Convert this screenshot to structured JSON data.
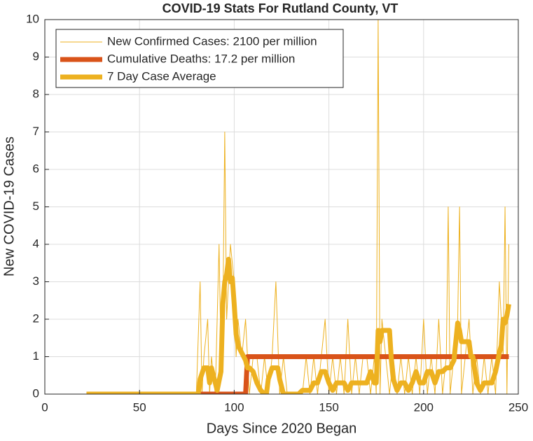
{
  "chart_data": {
    "type": "line",
    "title": "COVID-19 Stats For Rutland County, VT",
    "x_label": "Days Since 2020 Began",
    "y_label": "New COVID-19 Cases",
    "xlim": [
      0,
      250
    ],
    "xticks": [
      0,
      50,
      100,
      150,
      200,
      250
    ],
    "ylim": [
      0,
      10
    ],
    "yticks": [
      0,
      1,
      2,
      3,
      4,
      5,
      6,
      7,
      8,
      9,
      10
    ],
    "grid": true,
    "legend": "top-left",
    "series": [
      {
        "name": "New Confirmed Cases: 2100 per million",
        "color": "#edb120",
        "x": [
          22,
          80,
          82,
          83,
          84,
          86,
          87,
          88,
          90,
          92,
          93,
          94,
          95,
          96,
          97,
          98,
          100,
          101,
          102,
          104,
          106,
          108,
          110,
          112,
          114,
          116,
          118,
          120,
          122,
          124,
          126,
          128,
          130,
          132,
          134,
          136,
          138,
          140,
          142,
          144,
          146,
          148,
          150,
          152,
          154,
          156,
          158,
          160,
          162,
          164,
          166,
          168,
          170,
          172,
          174,
          175,
          176,
          177,
          178,
          180,
          182,
          184,
          186,
          188,
          190,
          192,
          194,
          196,
          198,
          200,
          202,
          204,
          206,
          208,
          210,
          212,
          213,
          214,
          216,
          218,
          219,
          220,
          222,
          224,
          226,
          228,
          230,
          232,
          234,
          236,
          238,
          240,
          242,
          243,
          244,
          245
        ],
        "values": [
          0,
          0,
          3,
          0,
          1,
          2,
          0,
          1,
          0,
          4,
          1,
          2,
          7,
          2,
          3,
          4,
          3,
          1,
          2,
          1,
          2,
          0,
          1,
          1,
          0,
          1,
          0,
          1,
          3,
          0,
          1,
          0,
          0,
          0,
          0,
          0,
          1,
          0,
          1,
          0,
          1,
          2,
          0,
          1,
          0,
          1,
          0,
          2,
          0,
          1,
          0,
          1,
          1,
          0,
          1,
          0,
          10,
          0,
          2,
          1,
          0,
          1,
          0,
          1,
          0,
          1,
          0,
          1,
          0,
          2,
          0,
          1,
          0,
          2,
          0,
          1,
          5,
          0,
          1,
          2,
          5,
          0,
          1,
          2,
          0,
          1,
          0,
          1,
          0,
          1,
          0,
          3,
          1,
          5,
          0,
          4
        ]
      },
      {
        "name": "Cumulative Deaths: 17.2 per million",
        "color": "#d95319",
        "x": [
          22,
          104,
          106,
          107,
          245
        ],
        "values": [
          0,
          0,
          0,
          1,
          1
        ]
      },
      {
        "name": "7 Day Case Average",
        "color": "#edb120",
        "x": [
          22,
          81,
          82,
          84,
          86,
          87,
          88,
          90,
          91,
          93,
          94,
          95,
          96,
          97,
          98,
          99,
          100,
          101,
          102,
          104,
          106,
          107,
          108,
          110,
          112,
          114,
          116,
          117,
          118,
          120,
          123,
          124,
          126,
          134,
          136,
          140,
          142,
          144,
          146,
          148,
          150,
          152,
          154,
          158,
          160,
          162,
          170,
          172,
          174,
          175,
          176,
          177,
          178,
          182,
          183,
          184,
          186,
          188,
          190,
          192,
          194,
          196,
          198,
          200,
          202,
          204,
          206,
          208,
          210,
          212,
          214,
          216,
          218,
          219,
          220,
          224,
          225,
          226,
          228,
          230,
          232,
          234,
          236,
          238,
          240,
          241,
          242,
          243,
          244,
          245
        ],
        "values": [
          0,
          0,
          0.4,
          0.7,
          0.7,
          0.3,
          0.7,
          0.3,
          0.1,
          0.6,
          2.4,
          3,
          3.2,
          3.6,
          3,
          3.1,
          2.4,
          1.6,
          1.3,
          1.1,
          0.9,
          0.7,
          0.7,
          0.6,
          0.3,
          0.1,
          0,
          0,
          0.4,
          0.7,
          0.7,
          0.4,
          0,
          0,
          0.1,
          0.1,
          0.3,
          0.3,
          0.6,
          0.6,
          0.3,
          0.1,
          0.3,
          0.3,
          0.1,
          0.3,
          0.3,
          0.6,
          0.3,
          0.3,
          1.7,
          1.4,
          1.7,
          1.7,
          0.9,
          0.4,
          0.1,
          0.3,
          0.3,
          0.1,
          0.3,
          0.6,
          0.3,
          0.3,
          0.6,
          0.6,
          0.3,
          0.6,
          0.6,
          0.7,
          0.7,
          0.9,
          1.9,
          1.7,
          1.4,
          1.4,
          1,
          1,
          0.3,
          0.1,
          0.3,
          0.3,
          0.3,
          0.6,
          1.1,
          1.3,
          2,
          1.9,
          2.1,
          2.4
        ]
      }
    ]
  }
}
